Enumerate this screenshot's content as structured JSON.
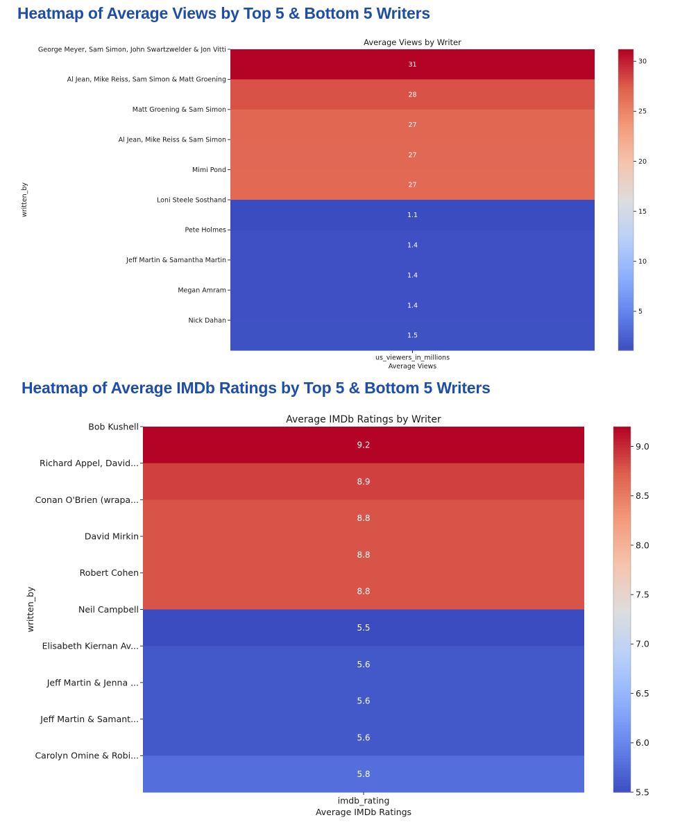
{
  "page": {
    "heading_views": "Heatmap of Average Views by Top 5 & Bottom 5 Writers",
    "heading_ratings": "Heatmap of Average IMDb Ratings by Top 5 & Bottom 5 Writers"
  },
  "chart_data": [
    {
      "type": "heatmap",
      "title": "Average Views by Writer",
      "xlabel": "Average Views",
      "ylabel": "written_by",
      "x_tick": "us_viewers_in_millions",
      "y_tick_labels": [
        "George Meyer, Sam Simon, John Swartzwelder & Jon Vitti",
        "Al Jean, Mike Reiss, Sam Simon & Matt Groening",
        "Matt Groening & Sam Simon",
        "Al Jean, Mike Reiss & Sam Simon",
        "Mimi Pond",
        "Loni Steele Sosthand",
        "Pete Holmes",
        "Jeff Martin & Samantha Martin",
        "Megan Amram",
        "Nick Dahan"
      ],
      "values": [
        31.2,
        28.0,
        27.0,
        26.9,
        26.8,
        1.1,
        1.4,
        1.4,
        1.4,
        1.5
      ],
      "cell_labels": [
        "31",
        "28",
        "27",
        "27",
        "27",
        "1.1",
        "1.4",
        "1.4",
        "1.4",
        "1.5"
      ],
      "colorbar": {
        "min": 1.1,
        "max": 31.2,
        "ticks": [
          "30",
          "25",
          "20",
          "15",
          "10",
          "5"
        ],
        "tick_values": [
          30,
          25,
          20,
          15,
          10,
          5
        ]
      },
      "colormap": "coolwarm"
    },
    {
      "type": "heatmap",
      "title": "Average IMDb Ratings by Writer",
      "xlabel": "Average IMDb Ratings",
      "ylabel": "written_by",
      "x_tick": "imdb_rating",
      "y_tick_labels": [
        "Bob Kushell",
        "Richard Appel, David...",
        "Conan O'Brien (wrapa...",
        "David Mirkin",
        "Robert Cohen",
        "Neil Campbell",
        "Elisabeth Kiernan Av...",
        "Jeff Martin & Jenna ...",
        "Jeff Martin & Samant...",
        "Carolyn Omine & Robi..."
      ],
      "values": [
        9.2,
        8.9,
        8.8,
        8.8,
        8.8,
        5.5,
        5.6,
        5.6,
        5.6,
        5.8
      ],
      "cell_labels": [
        "9.2",
        "8.9",
        "8.8",
        "8.8",
        "8.8",
        "5.5",
        "5.6",
        "5.6",
        "5.6",
        "5.8"
      ],
      "colorbar": {
        "min": 5.5,
        "max": 9.2,
        "ticks": [
          "9.0",
          "8.5",
          "8.0",
          "7.5",
          "7.0",
          "6.5",
          "6.0",
          "5.5"
        ],
        "tick_values": [
          9.0,
          8.5,
          8.0,
          7.5,
          7.0,
          6.5,
          6.0,
          5.5
        ]
      },
      "colormap": "coolwarm"
    }
  ]
}
